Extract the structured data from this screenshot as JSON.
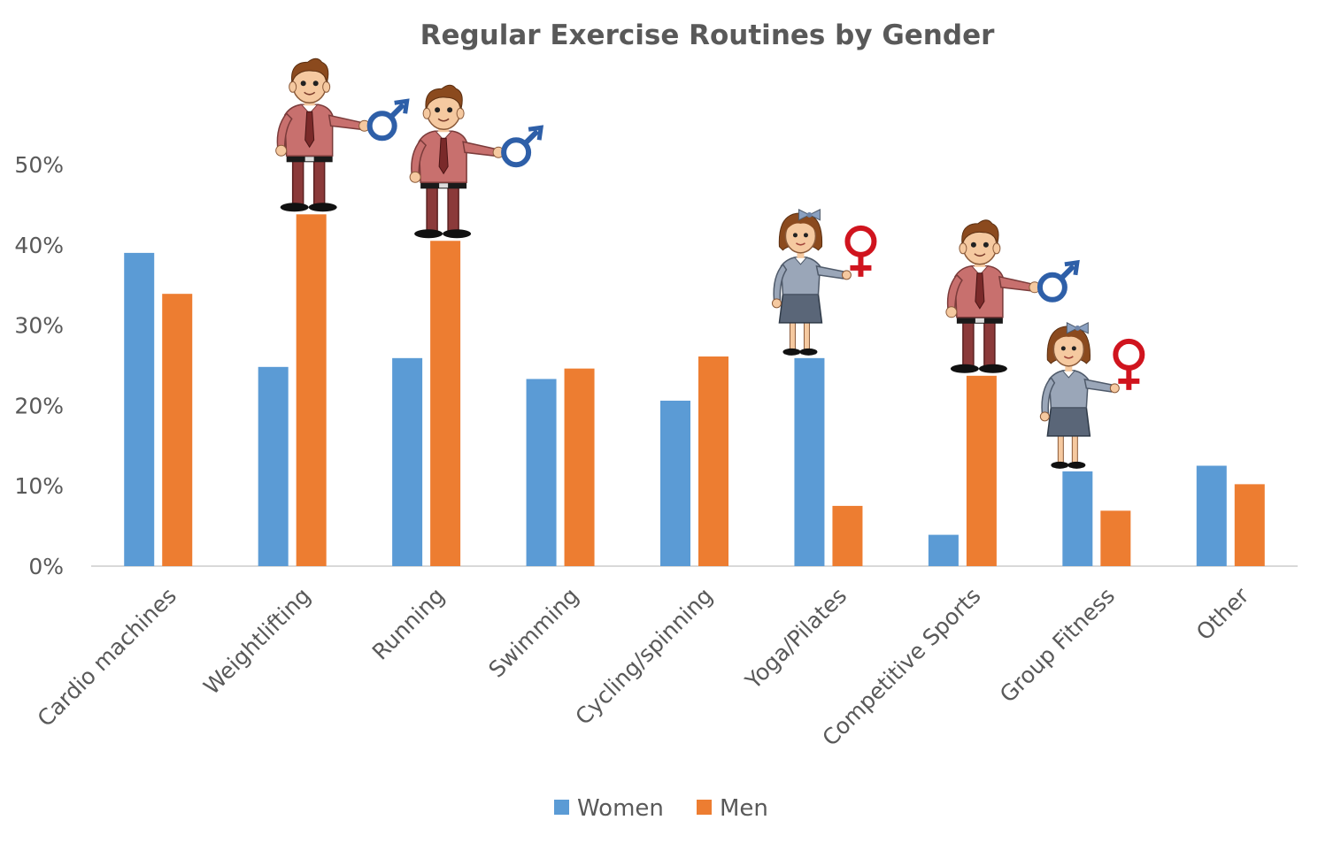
{
  "chart_data": {
    "type": "bar",
    "title": "Regular Exercise Routines by Gender",
    "xlabel": "",
    "ylabel": "",
    "ylim": [
      0,
      0.5
    ],
    "ytick_labels": [
      "0%",
      "10%",
      "20%",
      "30%",
      "40%",
      "50%"
    ],
    "ytick_values": [
      0,
      0.1,
      0.2,
      0.3,
      0.4,
      0.5
    ],
    "categories": [
      "Cardio machines",
      "Weightlifting",
      "Running",
      "Swimming",
      "Cycling/spinning",
      "Yoga/Pilates",
      "Competitive Sports",
      "Group Fitness",
      "Other"
    ],
    "series": [
      {
        "name": "Women",
        "color": "#5B9BD5",
        "values": [
          0.39,
          0.248,
          0.259,
          0.233,
          0.206,
          0.259,
          0.039,
          0.118,
          0.125
        ]
      },
      {
        "name": "Men",
        "color": "#ED7D31",
        "values": [
          0.339,
          0.438,
          0.405,
          0.246,
          0.261,
          0.075,
          0.237,
          0.069,
          0.102
        ]
      }
    ],
    "grid": false,
    "legend_position": "bottom",
    "annotations": [
      {
        "icon": "man-with-male-symbol-icon",
        "category": "Weightlifting",
        "series": "Men"
      },
      {
        "icon": "man-with-male-symbol-icon",
        "category": "Running",
        "series": "Men"
      },
      {
        "icon": "woman-with-female-symbol-icon",
        "category": "Yoga/Pilates",
        "series": "Women"
      },
      {
        "icon": "man-with-male-symbol-icon",
        "category": "Competitive Sports",
        "series": "Men"
      },
      {
        "icon": "woman-with-female-symbol-icon",
        "category": "Group Fitness",
        "series": "Women"
      }
    ]
  }
}
